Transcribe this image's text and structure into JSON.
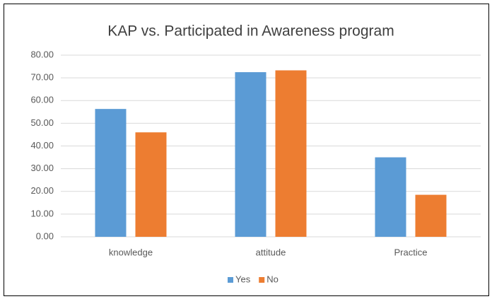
{
  "chart_data": {
    "type": "bar",
    "title": "KAP vs. Participated in Awareness program",
    "categories": [
      "knowledge",
      "attitude",
      "Practice"
    ],
    "series": [
      {
        "name": "Yes",
        "color": "#5b9bd5",
        "values": [
          56.3,
          72.5,
          35.0
        ]
      },
      {
        "name": "No",
        "color": "#ed7d31",
        "values": [
          46.0,
          73.3,
          18.5
        ]
      }
    ],
    "ylim": [
      0,
      80
    ],
    "yticks": [
      {
        "value": 0,
        "label": "0.00"
      },
      {
        "value": 10,
        "label": "10.00"
      },
      {
        "value": 20,
        "label": "20.00"
      },
      {
        "value": 30,
        "label": "30.00"
      },
      {
        "value": 40,
        "label": "40.00"
      },
      {
        "value": 50,
        "label": "50.00"
      },
      {
        "value": 60,
        "label": "60.00"
      },
      {
        "value": 70,
        "label": "70.00"
      },
      {
        "value": 80,
        "label": "80.00"
      }
    ],
    "grid": true,
    "legend": "bottom"
  }
}
